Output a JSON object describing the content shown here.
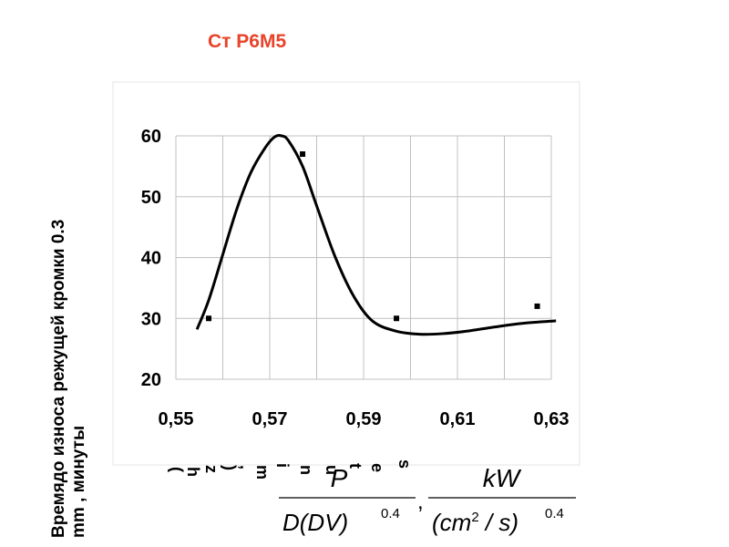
{
  "title": "Ст Р6М5",
  "colors": {
    "title": "#e8432a",
    "curve": "#000000",
    "grid": "#c0c0c0"
  },
  "chart_data": {
    "type": "scatter",
    "title": "",
    "ylabel_line1": "Времядо износа режущей кромки 0.3",
    "ylabel_line2": "mm , минуты",
    "xlim": [
      0.55,
      0.63
    ],
    "ylim": [
      20,
      60
    ],
    "x_ticks": [
      0.55,
      0.57,
      0.59,
      0.61,
      0.63
    ],
    "x_tick_labels": [
      "0,55",
      "0,57",
      "0,59",
      "0,61",
      "0,63"
    ],
    "y_ticks": [
      20,
      30,
      40,
      50,
      60
    ],
    "y_tick_labels": [
      "20",
      "30",
      "40",
      "50",
      "60"
    ],
    "grid": true,
    "points": [
      {
        "x": 0.557,
        "y": 30
      },
      {
        "x": 0.577,
        "y": 57
      },
      {
        "x": 0.597,
        "y": 30
      },
      {
        "x": 0.627,
        "y": 32
      }
    ],
    "trend_curve": [
      {
        "x": 0.5545,
        "y": 28.2
      },
      {
        "x": 0.557,
        "y": 33
      },
      {
        "x": 0.56,
        "y": 40.5
      },
      {
        "x": 0.563,
        "y": 48
      },
      {
        "x": 0.566,
        "y": 54
      },
      {
        "x": 0.569,
        "y": 58
      },
      {
        "x": 0.571,
        "y": 59.8
      },
      {
        "x": 0.5725,
        "y": 60
      },
      {
        "x": 0.574,
        "y": 59.2
      },
      {
        "x": 0.577,
        "y": 55
      },
      {
        "x": 0.58,
        "y": 48.5
      },
      {
        "x": 0.584,
        "y": 40
      },
      {
        "x": 0.588,
        "y": 33.5
      },
      {
        "x": 0.592,
        "y": 29.5
      },
      {
        "x": 0.597,
        "y": 27.9
      },
      {
        "x": 0.602,
        "y": 27.4
      },
      {
        "x": 0.607,
        "y": 27.5
      },
      {
        "x": 0.612,
        "y": 27.9
      },
      {
        "x": 0.618,
        "y": 28.6
      },
      {
        "x": 0.624,
        "y": 29.2
      },
      {
        "x": 0.631,
        "y": 29.6
      }
    ]
  },
  "x_axis_garbled_letters": [
    "(",
    "h",
    "z",
    ")",
    ",",
    "m",
    "i",
    "n",
    "u",
    "t",
    "e",
    "s"
  ],
  "formula": {
    "left_numerator": "P",
    "left_denominator": "D(DV)",
    "left_exponent": "0.4",
    "separator": ",",
    "right_numerator": "kW",
    "right_denominator": "(cm",
    "right_sq": "2",
    "right_tail": " / s)",
    "right_exponent": "0.4"
  }
}
